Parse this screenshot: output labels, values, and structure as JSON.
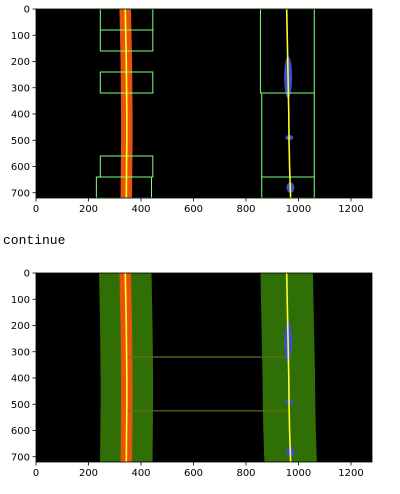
{
  "output_text": "continue",
  "colors": {
    "background": "#000000",
    "lane_pixels_left": "#e8530a",
    "lane_pixels_right": "#3a4fd4",
    "fit_line": "#ffff2a",
    "window_box": "#7cff7c",
    "search_margin": "#2f6f06",
    "tick": "#000000"
  },
  "chart_data": [
    {
      "type": "scatter",
      "title": "",
      "xlabel": "",
      "ylabel": "",
      "xlim": [
        0,
        1280
      ],
      "ylim": [
        720,
        0
      ],
      "x_ticks": [
        "0",
        "200",
        "400",
        "600",
        "800",
        "1000",
        "1200"
      ],
      "y_ticks": [
        "0",
        "100",
        "200",
        "300",
        "400",
        "500",
        "600",
        "700"
      ],
      "left_fit": {
        "y": [
          0,
          100,
          200,
          300,
          400,
          500,
          600,
          720
        ],
        "x": [
          340,
          342,
          344,
          345,
          346,
          346,
          345,
          344
        ]
      },
      "right_fit": {
        "y": [
          0,
          100,
          200,
          300,
          400,
          500,
          600,
          720
        ],
        "x": [
          955,
          957,
          959,
          961,
          963,
          964,
          966,
          970
        ]
      },
      "windows_left": [
        {
          "x": [
            245,
            445
          ],
          "y": [
            80,
            160
          ]
        },
        {
          "x": [
            245,
            445
          ],
          "y": [
            0,
            80
          ]
        },
        {
          "x": [
            245,
            445
          ],
          "y": [
            240,
            320
          ]
        },
        {
          "x": [
            245,
            445
          ],
          "y": [
            560,
            640
          ]
        },
        {
          "x": [
            230,
            440
          ],
          "y": [
            640,
            720
          ]
        }
      ],
      "windows_right": [
        {
          "x": [
            855,
            1060
          ],
          "y": [
            0,
            320
          ]
        },
        {
          "x": [
            860,
            1060
          ],
          "y": [
            320,
            640
          ]
        },
        {
          "x": [
            860,
            1060
          ],
          "y": [
            640,
            720
          ]
        }
      ]
    },
    {
      "type": "scatter",
      "title": "",
      "xlabel": "",
      "ylabel": "",
      "xlim": [
        0,
        1280
      ],
      "ylim": [
        720,
        0
      ],
      "x_ticks": [
        "0",
        "200",
        "400",
        "600",
        "800",
        "1000",
        "1200"
      ],
      "y_ticks": [
        "0",
        "100",
        "200",
        "300",
        "400",
        "500",
        "600",
        "700"
      ],
      "left_fit": {
        "y": [
          0,
          100,
          200,
          300,
          400,
          500,
          600,
          720
        ],
        "x": [
          340,
          342,
          344,
          345,
          346,
          346,
          345,
          344
        ]
      },
      "right_fit": {
        "y": [
          0,
          100,
          200,
          300,
          400,
          500,
          600,
          720
        ],
        "x": [
          955,
          957,
          959,
          961,
          963,
          964,
          966,
          970
        ]
      },
      "search_margin": 100,
      "connector_lines_y": [
        320,
        525
      ]
    }
  ]
}
